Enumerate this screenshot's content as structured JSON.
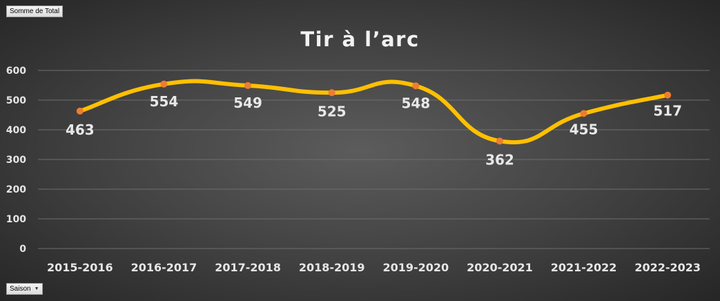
{
  "pivot": {
    "value_field": "Somme de Total",
    "axis_field": "Saison",
    "dropdown_icon": "dropdown-arrow-icon"
  },
  "colors": {
    "line": "#FFC000",
    "marker": "#ED7D31",
    "gridline": "#6e6e6e",
    "text": "#e6e6e6"
  },
  "chart_data": {
    "type": "line",
    "smooth": true,
    "title": "Tir à l’arc",
    "categories": [
      "2015-2016",
      "2016-2017",
      "2017-2018",
      "2018-2019",
      "2019-2020",
      "2020-2021",
      "2021-2022",
      "2022-2023"
    ],
    "series": [
      {
        "values": [
          463,
          554,
          549,
          525,
          548,
          362,
          455,
          517
        ]
      }
    ],
    "data_labels": [
      "463",
      "554",
      "549",
      "525",
      "548",
      "362",
      "455",
      "517"
    ],
    "yticks": [
      "0",
      "100",
      "200",
      "300",
      "400",
      "500",
      "600"
    ],
    "ylim": [
      0,
      600
    ],
    "grid": true,
    "legend": "none"
  }
}
